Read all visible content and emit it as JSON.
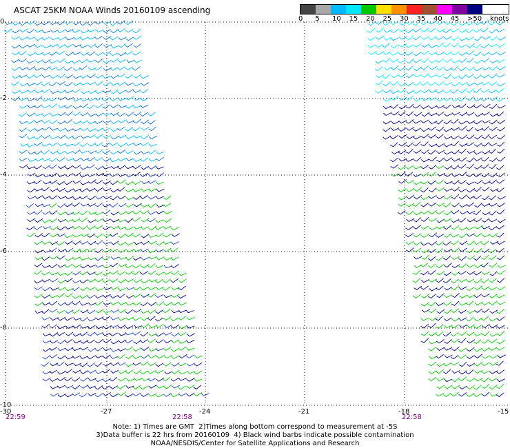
{
  "title": "ASCAT 25KM NOAA Winds 20160109 ascending",
  "colorbar": {
    "unit": "knots",
    "labels": [
      "0",
      "5",
      "10",
      "15",
      "20",
      "25",
      "30",
      "35",
      "40",
      "45",
      ">50"
    ],
    "colors": [
      "#454545",
      "#a8a8a8",
      "#00b8ff",
      "#00e8ff",
      "#00c800",
      "#ffe000",
      "#ff9000",
      "#ff2020",
      "#a05030",
      "#ff00ff",
      "#8000a0",
      "#000080"
    ]
  },
  "axes": {
    "y_labels": [
      "0",
      "-2",
      "-4",
      "-6",
      "-8",
      "-10"
    ],
    "x_labels": [
      "-30",
      "-27",
      "-24",
      "-21",
      "-18",
      "-15"
    ],
    "x_range": [
      -30,
      -15
    ],
    "y_range": [
      0,
      -10
    ]
  },
  "time_labels": [
    "22:59",
    "22:58",
    "22:58"
  ],
  "notes": [
    "Note: 1) Times are GMT  2)Times along bottom correspond to measurement at -5S",
    "3)Data buffer is 22 hrs from 20160109  4) Black wind barbs indicate possible contamination",
    "NOAA/NESDIS/Center for Satellite Applications and Research"
  ],
  "chart_data": {
    "type": "map",
    "title": "ASCAT 25KM NOAA Winds 20160109 ascending",
    "x_range": [
      -30,
      -15
    ],
    "y_range": [
      0,
      -10
    ],
    "x_ticks": [
      -30,
      -27,
      -24,
      -21,
      -18,
      -15
    ],
    "y_ticks": [
      0,
      -2,
      -4,
      -6,
      -8,
      -10
    ],
    "grid": true,
    "legend": "top-right colorbar (knots)",
    "swaths": [
      {
        "time": "22:59",
        "bottom_lon_range": [
          -30,
          -24
        ],
        "description": "wind barbs, mostly 10-20 knots"
      },
      {
        "time": "22:58",
        "bottom_lon_range": [
          -18,
          -15
        ],
        "description": "wind barbs, 10-25 knots"
      }
    ]
  }
}
